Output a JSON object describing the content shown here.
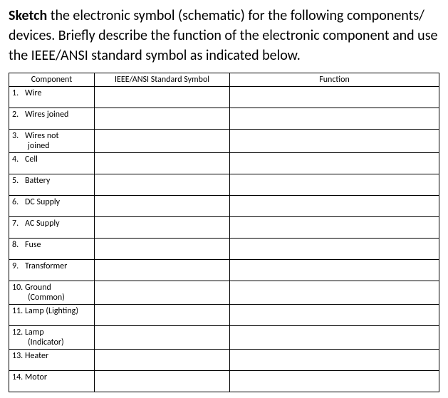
{
  "instruction": {
    "bold_lead": "Sketch",
    "rest": " the electronic symbol (schematic) for the following components/ devices. Briefly describe the function of the electronic component and use the IEEE/ANSI standard symbol as indicated below."
  },
  "table": {
    "headers": {
      "component": "Component",
      "symbol": "IEEE/ANSI Standard Symbol",
      "function": "Function"
    },
    "rows": [
      {
        "num": "1.",
        "name": "Wire",
        "multiline": false,
        "tall": true
      },
      {
        "num": "2.",
        "name": "Wires joined",
        "multiline": false,
        "tall": true
      },
      {
        "num": "3.",
        "name": "Wires not",
        "name2": "joined",
        "multiline": true,
        "tall": false
      },
      {
        "num": "4.",
        "name": "Cell",
        "multiline": false,
        "tall": true
      },
      {
        "num": "5.",
        "name": "Battery",
        "multiline": false,
        "tall": true
      },
      {
        "num": "6.",
        "name": "DC Supply",
        "multiline": false,
        "tall": true
      },
      {
        "num": "7.",
        "name": "AC Supply",
        "multiline": false,
        "tall": true
      },
      {
        "num": "8.",
        "name": "Fuse",
        "multiline": false,
        "tall": true
      },
      {
        "num": "9.",
        "name": "Transformer",
        "multiline": false,
        "tall": true
      },
      {
        "num": "10.",
        "name": "Ground",
        "name2": "(Common)",
        "multiline": true,
        "tall": false
      },
      {
        "num": "11.",
        "name": "Lamp (Lighting)",
        "multiline": false,
        "tall": true
      },
      {
        "num": "12.",
        "name": "Lamp",
        "name2": "(Indicator)",
        "multiline": true,
        "tall": false
      },
      {
        "num": "13.",
        "name": "Heater",
        "multiline": false,
        "tall": true
      },
      {
        "num": "14.",
        "name": "Motor",
        "multiline": false,
        "tall": true
      }
    ]
  },
  "style": {
    "background": "#ffffff",
    "text_color": "#000000",
    "border_color": "#000000",
    "instruction_fontsize": 20,
    "table_fontsize": 12,
    "col_widths": {
      "component": 120,
      "symbol": 190
    }
  }
}
